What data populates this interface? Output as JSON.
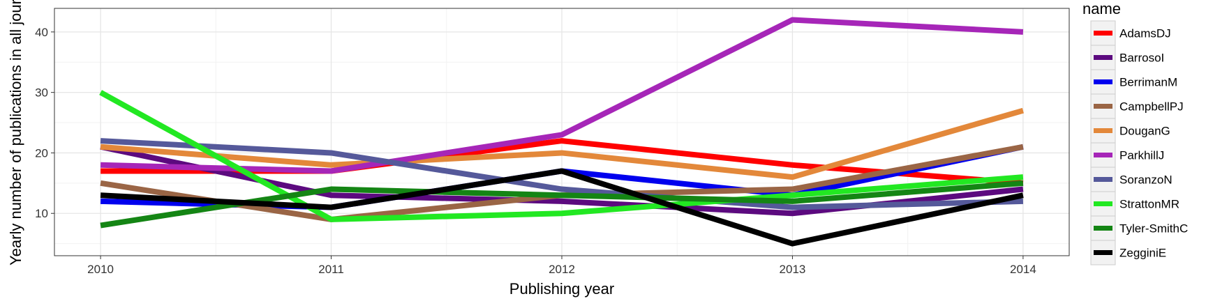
{
  "chart_data": {
    "type": "line",
    "title": "",
    "xlabel": "Publishing year",
    "ylabel": "Yearly number of publications in all jour",
    "x": [
      2010,
      2011,
      2012,
      2013,
      2014
    ],
    "x_tick_labels": [
      "2010",
      "2011",
      "2012",
      "2013",
      "2014"
    ],
    "xlim": [
      2009.8,
      2014.2
    ],
    "ylim": [
      3.0,
      43.9
    ],
    "y_ticks": [
      10,
      20,
      30,
      40
    ],
    "y_tick_labels": [
      "10",
      "20",
      "30",
      "40"
    ],
    "grid": true,
    "legend_title": "name",
    "legend_position": "right",
    "series": [
      {
        "name": "AdamsDJ",
        "color": "#ff0000",
        "values": [
          17,
          17,
          22,
          18,
          15
        ]
      },
      {
        "name": "BarrosoI",
        "color": "#5c0a7f",
        "values": [
          21,
          13,
          12,
          10,
          14
        ]
      },
      {
        "name": "BerrimanM",
        "color": "#0000ee",
        "values": [
          12,
          11,
          17,
          13,
          21
        ]
      },
      {
        "name": "CampbellPJ",
        "color": "#9a6545",
        "values": [
          15,
          9,
          13,
          14,
          21
        ]
      },
      {
        "name": "DouganG",
        "color": "#e3883a",
        "values": [
          21,
          18,
          20,
          16,
          27
        ]
      },
      {
        "name": "ParkhillJ",
        "color": "#a626b8",
        "values": [
          18,
          17,
          23,
          42,
          40
        ]
      },
      {
        "name": "SoranzoN",
        "color": "#55599a",
        "values": [
          22,
          20,
          14,
          11,
          12
        ]
      },
      {
        "name": "StrattonMR",
        "color": "#22e822",
        "values": [
          30,
          9,
          10,
          13,
          16
        ]
      },
      {
        "name": "Tyler-SmithC",
        "color": "#148514",
        "values": [
          8,
          14,
          13,
          12,
          15
        ]
      },
      {
        "name": "ZegginiE",
        "color": "#000000",
        "values": [
          13,
          11,
          17,
          5,
          13
        ]
      }
    ]
  }
}
